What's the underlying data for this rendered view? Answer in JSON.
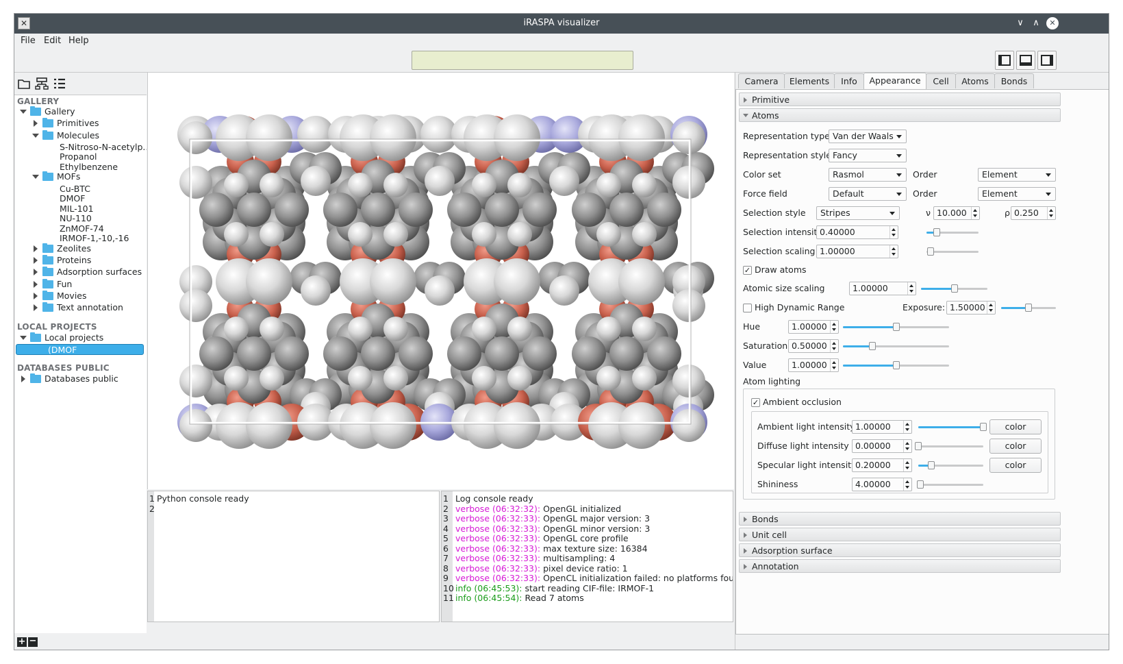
{
  "window": {
    "title": "iRASPA visualizer",
    "app_icon": "x-icon"
  },
  "menu": [
    {
      "label": "File"
    },
    {
      "label": "Edit"
    },
    {
      "label": "Help"
    }
  ],
  "toolbar": {
    "progress_text": ""
  },
  "left": {
    "gallery_header": "GALLERY",
    "local_header": "LOCAL PROJECTS",
    "databases_header": "DATABASES PUBLIC",
    "gallery": [
      {
        "label": "Gallery",
        "level": 0,
        "expanded": true,
        "folder": true
      },
      {
        "label": "Primitives",
        "level": 1,
        "expanded": false,
        "folder": true
      },
      {
        "label": "Molecules",
        "level": 1,
        "expanded": true,
        "folder": true
      },
      {
        "label": "S-Nitroso-N-acetylp...",
        "level": 2,
        "folder": false
      },
      {
        "label": "Propanol",
        "level": 2,
        "folder": false
      },
      {
        "label": "Ethylbenzene",
        "level": 2,
        "folder": false
      },
      {
        "label": "MOFs",
        "level": 1,
        "expanded": true,
        "folder": true
      },
      {
        "label": "Cu-BTC",
        "level": 2,
        "folder": false
      },
      {
        "label": "DMOF",
        "level": 2,
        "folder": false
      },
      {
        "label": "MIL-101",
        "level": 2,
        "folder": false
      },
      {
        "label": "NU-110",
        "level": 2,
        "folder": false
      },
      {
        "label": "ZnMOF-74",
        "level": 2,
        "folder": false
      },
      {
        "label": "IRMOF-1,-10,-16",
        "level": 2,
        "folder": false
      },
      {
        "label": "Zeolites",
        "level": 1,
        "expanded": false,
        "folder": true
      },
      {
        "label": "Proteins",
        "level": 1,
        "expanded": false,
        "folder": true
      },
      {
        "label": "Adsorption surfaces",
        "level": 1,
        "expanded": false,
        "folder": true
      },
      {
        "label": "Fun",
        "level": 1,
        "expanded": false,
        "folder": true
      },
      {
        "label": "Movies",
        "level": 1,
        "expanded": false,
        "folder": true
      },
      {
        "label": "Text annotation",
        "level": 1,
        "expanded": false,
        "folder": true
      }
    ],
    "local": [
      {
        "label": "Local projects",
        "level": 0,
        "expanded": true,
        "folder": true
      },
      {
        "label": "(DMOF",
        "level": 1,
        "folder": false,
        "selected": true
      }
    ],
    "databases": [
      {
        "label": "Databases public",
        "level": 0,
        "expanded": false,
        "folder": true
      }
    ]
  },
  "python_console": {
    "lines": [
      {
        "n": "1",
        "text": "Python console ready"
      },
      {
        "n": "2",
        "text": ""
      }
    ]
  },
  "log_console": {
    "lines": [
      {
        "n": "1",
        "level": "",
        "tag": "",
        "text": "Log console ready"
      },
      {
        "n": "2",
        "level": "verbose",
        "tag": "verbose (06:32:32):",
        "text": " OpenGL initialized"
      },
      {
        "n": "3",
        "level": "verbose",
        "tag": "verbose (06:32:33):",
        "text": " OpenGL major version: 3"
      },
      {
        "n": "4",
        "level": "verbose",
        "tag": "verbose (06:32:33):",
        "text": " OpenGL minor version: 3"
      },
      {
        "n": "5",
        "level": "verbose",
        "tag": "verbose (06:32:33):",
        "text": " OpenGL core profile"
      },
      {
        "n": "6",
        "level": "verbose",
        "tag": "verbose (06:32:33):",
        "text": " max texture size: 16384"
      },
      {
        "n": "7",
        "level": "verbose",
        "tag": "verbose (06:32:33):",
        "text": " multisampling: 4"
      },
      {
        "n": "8",
        "level": "verbose",
        "tag": "verbose (06:32:33):",
        "text": " pixel device ratio: 1"
      },
      {
        "n": "9",
        "level": "verbose",
        "tag": "verbose (06:32:33):",
        "text": " OpenCL initialization failed: no platforms found."
      },
      {
        "n": "10",
        "level": "info",
        "tag": "info (06:45:53):",
        "text": " start reading CIF-file: IRMOF-1"
      },
      {
        "n": "11",
        "level": "info",
        "tag": "info (06:45:54):",
        "text": " Read 7 atoms"
      }
    ]
  },
  "tabs": [
    {
      "label": "Camera",
      "active": false
    },
    {
      "label": "Elements",
      "active": false
    },
    {
      "label": "Info",
      "active": false
    },
    {
      "label": "Appearance",
      "active": true
    },
    {
      "label": "Cell",
      "active": false
    },
    {
      "label": "Atoms",
      "active": false
    },
    {
      "label": "Bonds",
      "active": false
    }
  ],
  "appearance": {
    "primitive_header": "Primitive",
    "atoms_header": "Atoms",
    "representation_type": {
      "label": "Representation type",
      "value": "Van der Waals"
    },
    "representation_style": {
      "label": "Representation style",
      "value": "Fancy"
    },
    "color_set": {
      "label": "Color set",
      "value": "Rasmol",
      "order_label": "Order",
      "order_value": "Element"
    },
    "force_field": {
      "label": "Force field",
      "value": "Default",
      "order_label": "Order",
      "order_value": "Element"
    },
    "selection_style": {
      "label": "Selection style",
      "value": "Stripes",
      "nu_label": "ν",
      "nu_value": "10.000",
      "rho_label": "ρ",
      "rho_value": "0.250"
    },
    "selection_intensity": {
      "label": "Selection intensity",
      "value": "0.40000",
      "level": 0.2
    },
    "selection_scaling": {
      "label": "Selection scaling",
      "value": "1.00000",
      "level": 0.08
    },
    "draw_atoms": {
      "label": "Draw atoms",
      "checked": true
    },
    "atomic_size_scaling": {
      "label": "Atomic size scaling",
      "value": "1.00000",
      "level": 0.5
    },
    "hdr": {
      "label": "High Dynamic Range",
      "checked": false,
      "exposure_label": "Exposure:",
      "exposure_value": "1.50000",
      "level": 0.5
    },
    "hue": {
      "label": "Hue",
      "value": "1.00000",
      "level": 0.5
    },
    "saturation": {
      "label": "Saturation",
      "value": "0.50000",
      "level": 0.28
    },
    "value": {
      "label": "Value",
      "value": "1.00000",
      "level": 0.5
    },
    "atom_lighting_label": "Atom lighting",
    "ambient_occlusion": {
      "label": "Ambient occlusion",
      "checked": true
    },
    "ambient": {
      "label": "Ambient light intensity",
      "value": "1.00000",
      "level": 1.0,
      "button": "color"
    },
    "diffuse": {
      "label": "Diffuse light intensity",
      "value": "0.00000",
      "level": 0.0,
      "button": "color"
    },
    "specular": {
      "label": "Specular light intensity",
      "value": "0.20000",
      "level": 0.2,
      "button": "color"
    },
    "shininess": {
      "label": "Shininess",
      "value": "4.00000",
      "level": 0.03
    },
    "bonds_header": "Bonds",
    "unitcell_header": "Unit cell",
    "adsorption_header": "Adsorption surface",
    "annotation_header": "Annotation"
  }
}
